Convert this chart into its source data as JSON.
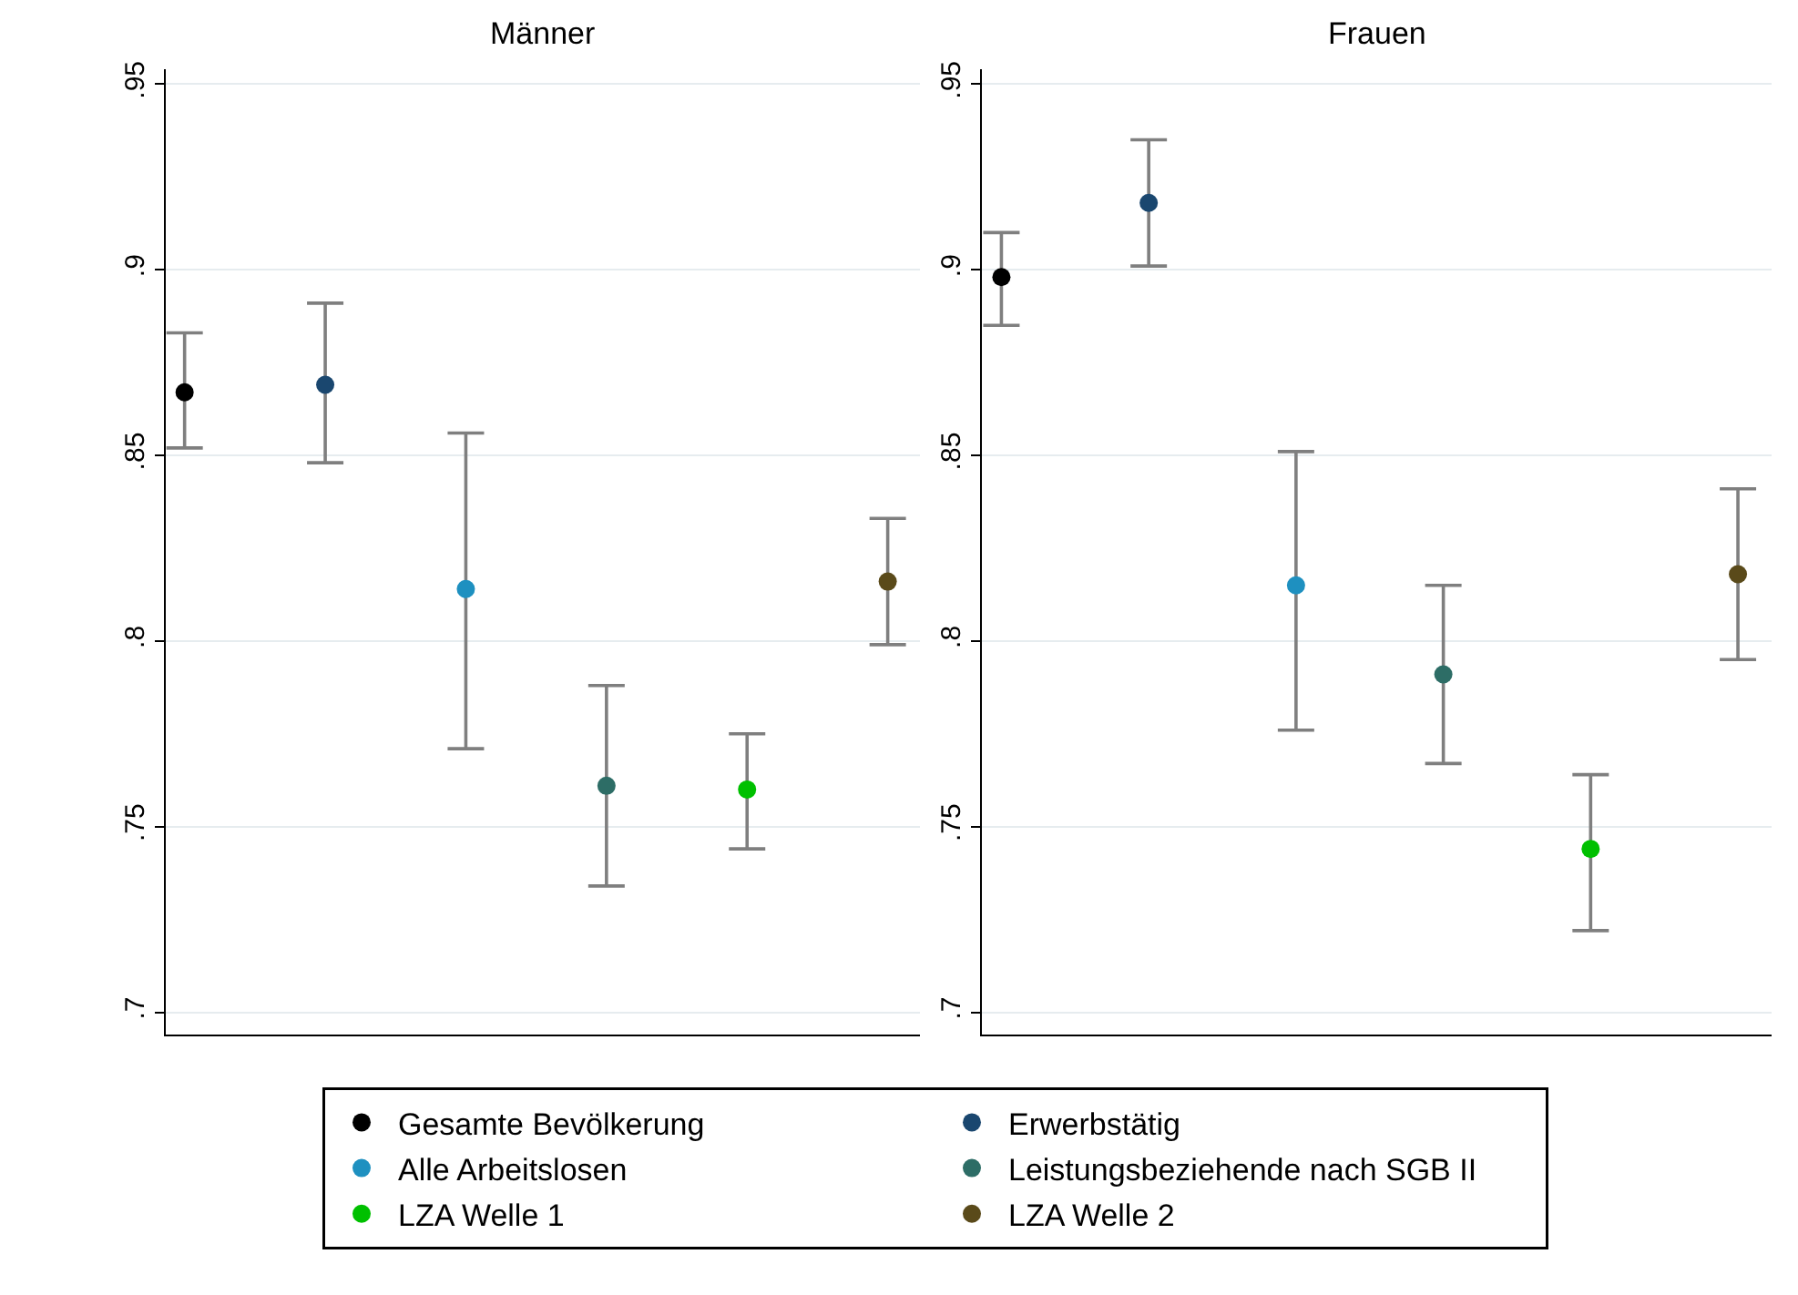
{
  "chart_data": [
    {
      "type": "scatter",
      "title": "Männer",
      "categories": [
        null,
        null,
        null,
        null,
        null,
        null
      ],
      "marker": "circle",
      "grid": "y",
      "legend": "bottom",
      "tick_labels": "y",
      "ylim": [
        0.694,
        0.954
      ],
      "yticks": [
        {
          "value": 0.7,
          "label": ".7"
        },
        {
          "value": 0.75,
          "label": ".75"
        },
        {
          "value": 0.8,
          "label": ".8"
        },
        {
          "value": 0.85,
          "label": ".85"
        },
        {
          "value": 0.9,
          "label": ".9"
        },
        {
          "value": 0.95,
          "label": ".95"
        }
      ],
      "series": [
        {
          "name": "Gesamte Bevölkerung",
          "color": "#000000",
          "values": [
            0.867,
            null,
            null,
            null,
            null,
            null
          ],
          "errors": [
            [
              0.852,
              0.883
            ],
            null,
            null,
            null,
            null,
            null
          ]
        },
        {
          "name": "Erwerbstätig",
          "color": "#1a476f",
          "values": [
            null,
            0.869,
            null,
            null,
            null,
            null
          ],
          "errors": [
            null,
            [
              0.848,
              0.891
            ],
            null,
            null,
            null,
            null
          ]
        },
        {
          "name": "Alle Arbeitslosen",
          "color": "#1e90c0",
          "values": [
            null,
            null,
            0.814,
            null,
            null,
            null
          ],
          "errors": [
            null,
            null,
            [
              0.771,
              0.856
            ],
            null,
            null,
            null
          ]
        },
        {
          "name": "Leistungsbeziehende nach SGB II",
          "color": "#2d6d66",
          "values": [
            null,
            null,
            null,
            0.761,
            null,
            null
          ],
          "errors": [
            null,
            null,
            null,
            [
              0.734,
              0.788
            ],
            null,
            null
          ]
        },
        {
          "name": "LZA Welle 1",
          "color": "#00c000",
          "values": [
            null,
            null,
            null,
            null,
            0.76,
            null
          ],
          "errors": [
            null,
            null,
            null,
            null,
            [
              0.744,
              0.775
            ],
            null
          ]
        },
        {
          "name": "LZA Welle 2",
          "color": "#5a4a1a",
          "values": [
            null,
            null,
            null,
            null,
            null,
            0.816
          ],
          "errors": [
            null,
            null,
            null,
            null,
            null,
            [
              0.799,
              0.833
            ]
          ]
        }
      ]
    },
    {
      "type": "scatter",
      "title": "Frauen",
      "categories": [
        null,
        null,
        null,
        null,
        null,
        null
      ],
      "marker": "circle",
      "grid": "y",
      "tick_labels": "y",
      "ylim": [
        0.694,
        0.954
      ],
      "yticks": [
        {
          "value": 0.7,
          "label": ".7"
        },
        {
          "value": 0.75,
          "label": ".75"
        },
        {
          "value": 0.8,
          "label": ".8"
        },
        {
          "value": 0.85,
          "label": ".85"
        },
        {
          "value": 0.9,
          "label": ".9"
        },
        {
          "value": 0.95,
          "label": ".95"
        }
      ],
      "series": [
        {
          "color": "#000000",
          "values": [
            0.898,
            null,
            null,
            null,
            null,
            null
          ],
          "errors": [
            [
              0.885,
              0.91
            ],
            null,
            null,
            null,
            null,
            null
          ]
        },
        {
          "color": "#1a476f",
          "values": [
            null,
            0.918,
            null,
            null,
            null,
            null
          ],
          "errors": [
            null,
            [
              0.901,
              0.935
            ],
            null,
            null,
            null,
            null
          ]
        },
        {
          "color": "#1e90c0",
          "values": [
            null,
            null,
            0.815,
            null,
            null,
            null
          ],
          "errors": [
            null,
            null,
            [
              0.776,
              0.851
            ],
            null,
            null,
            null
          ]
        },
        {
          "color": "#2d6d66",
          "values": [
            null,
            null,
            null,
            0.791,
            null,
            null
          ],
          "errors": [
            null,
            null,
            null,
            [
              0.767,
              0.815
            ],
            null,
            null
          ]
        },
        {
          "color": "#00c000",
          "values": [
            null,
            null,
            null,
            null,
            0.744,
            null
          ],
          "errors": [
            null,
            null,
            null,
            null,
            [
              0.722,
              0.764
            ],
            null
          ]
        },
        {
          "color": "#5a4a1a",
          "values": [
            null,
            null,
            null,
            null,
            null,
            0.818
          ],
          "errors": [
            null,
            null,
            null,
            null,
            null,
            [
              0.795,
              0.841
            ]
          ]
        }
      ]
    }
  ]
}
